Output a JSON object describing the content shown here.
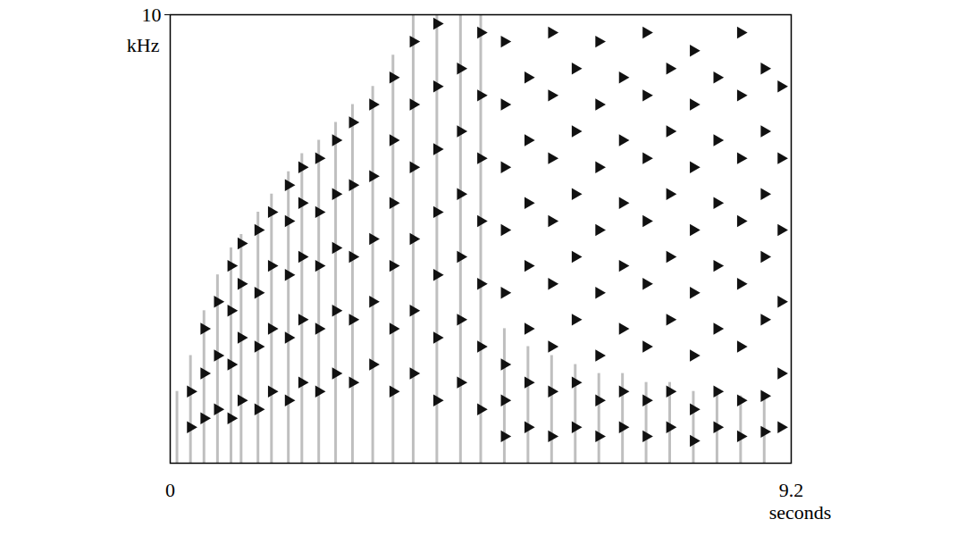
{
  "chart_data": {
    "type": "spectrogram",
    "xlabel": "seconds",
    "ylabel": "kHz",
    "xlim": [
      0,
      9.2
    ],
    "ylim": [
      0,
      10
    ],
    "xticks": [
      0,
      9.2
    ],
    "yticks": [
      10
    ],
    "color": "#111111",
    "streaks": [
      {
        "t": 0.1,
        "top": 1.6
      },
      {
        "t": 0.3,
        "top": 2.4
      },
      {
        "t": 0.5,
        "top": 3.4
      },
      {
        "t": 0.7,
        "top": 4.2
      },
      {
        "t": 0.9,
        "top": 4.8
      },
      {
        "t": 1.05,
        "top": 5.1
      },
      {
        "t": 1.3,
        "top": 5.6
      },
      {
        "t": 1.5,
        "top": 6.0
      },
      {
        "t": 1.75,
        "top": 6.5
      },
      {
        "t": 1.95,
        "top": 6.9
      },
      {
        "t": 2.2,
        "top": 7.2
      },
      {
        "t": 2.45,
        "top": 7.6
      },
      {
        "t": 2.7,
        "top": 8.0
      },
      {
        "t": 3.0,
        "top": 8.4
      },
      {
        "t": 3.3,
        "top": 9.1
      },
      {
        "t": 3.6,
        "top": 10
      },
      {
        "t": 3.95,
        "top": 10
      },
      {
        "t": 4.3,
        "top": 10
      },
      {
        "t": 4.6,
        "top": 10
      },
      {
        "t": 4.95,
        "top": 3.0
      },
      {
        "t": 5.3,
        "top": 2.6
      },
      {
        "t": 5.65,
        "top": 2.4
      },
      {
        "t": 6.0,
        "top": 2.2
      },
      {
        "t": 6.35,
        "top": 2.0
      },
      {
        "t": 6.7,
        "top": 2.0
      },
      {
        "t": 7.05,
        "top": 1.8
      },
      {
        "t": 7.4,
        "top": 1.8
      },
      {
        "t": 7.75,
        "top": 1.6
      },
      {
        "t": 8.1,
        "top": 1.6
      },
      {
        "t": 8.45,
        "top": 1.5
      },
      {
        "t": 8.8,
        "top": 1.5
      }
    ],
    "tones": [
      {
        "t": 0.3,
        "f": [
          0.8,
          1.6
        ]
      },
      {
        "t": 0.5,
        "f": [
          1.0,
          2.0,
          3.0
        ]
      },
      {
        "t": 0.7,
        "f": [
          1.2,
          2.4,
          3.6
        ]
      },
      {
        "t": 0.9,
        "f": [
          1.0,
          2.2,
          3.4,
          4.4
        ]
      },
      {
        "t": 1.05,
        "f": [
          1.4,
          2.8,
          4.0,
          4.9
        ]
      },
      {
        "t": 1.3,
        "f": [
          1.2,
          2.6,
          3.8,
          5.2
        ]
      },
      {
        "t": 1.5,
        "f": [
          1.6,
          3.0,
          4.4,
          5.6
        ]
      },
      {
        "t": 1.75,
        "f": [
          1.4,
          2.8,
          4.2,
          5.4,
          6.2
        ]
      },
      {
        "t": 1.95,
        "f": [
          1.8,
          3.2,
          4.6,
          5.8,
          6.6
        ]
      },
      {
        "t": 2.2,
        "f": [
          1.6,
          3.0,
          4.4,
          5.6,
          6.8
        ]
      },
      {
        "t": 2.45,
        "f": [
          2.0,
          3.4,
          4.8,
          6.0,
          7.2
        ]
      },
      {
        "t": 2.7,
        "f": [
          1.8,
          3.2,
          4.6,
          6.2,
          7.6
        ]
      },
      {
        "t": 3.0,
        "f": [
          2.2,
          3.6,
          5.0,
          6.4,
          8.0
        ]
      },
      {
        "t": 3.3,
        "f": [
          1.6,
          3.0,
          4.4,
          5.8,
          7.2,
          8.6
        ]
      },
      {
        "t": 3.6,
        "f": [
          2.0,
          3.4,
          5.0,
          6.6,
          8.0,
          9.4
        ]
      },
      {
        "t": 3.95,
        "f": [
          1.4,
          2.8,
          4.2,
          5.6,
          7.0,
          8.4,
          9.8
        ]
      },
      {
        "t": 4.3,
        "f": [
          1.8,
          3.2,
          4.6,
          6.0,
          7.4,
          8.8
        ]
      },
      {
        "t": 4.6,
        "f": [
          1.2,
          2.6,
          4.0,
          5.4,
          6.8,
          8.2,
          9.6
        ]
      },
      {
        "t": 4.95,
        "f": [
          0.6,
          1.4,
          2.2,
          3.8,
          5.2,
          6.6,
          8.0,
          9.4
        ]
      },
      {
        "t": 5.3,
        "f": [
          0.8,
          1.8,
          3.0,
          4.4,
          5.8,
          7.2,
          8.6
        ]
      },
      {
        "t": 5.65,
        "f": [
          0.6,
          1.6,
          2.6,
          4.0,
          5.4,
          6.8,
          8.2,
          9.6
        ]
      },
      {
        "t": 6.0,
        "f": [
          0.8,
          1.8,
          3.2,
          4.6,
          6.0,
          7.4,
          8.8
        ]
      },
      {
        "t": 6.35,
        "f": [
          0.6,
          1.4,
          2.4,
          3.8,
          5.2,
          6.6,
          8.0,
          9.4
        ]
      },
      {
        "t": 6.7,
        "f": [
          0.8,
          1.6,
          3.0,
          4.4,
          5.8,
          7.2,
          8.6
        ]
      },
      {
        "t": 7.05,
        "f": [
          0.6,
          1.4,
          2.6,
          4.0,
          5.4,
          6.8,
          8.2,
          9.6
        ]
      },
      {
        "t": 7.4,
        "f": [
          0.8,
          1.6,
          3.2,
          4.6,
          6.0,
          7.4,
          8.8
        ]
      },
      {
        "t": 7.75,
        "f": [
          0.5,
          1.2,
          2.4,
          3.8,
          5.2,
          6.6,
          8.0,
          9.2
        ]
      },
      {
        "t": 8.1,
        "f": [
          0.8,
          1.6,
          3.0,
          4.4,
          5.8,
          7.2,
          8.6
        ]
      },
      {
        "t": 8.45,
        "f": [
          0.6,
          1.4,
          2.6,
          4.0,
          5.4,
          6.8,
          8.2,
          9.6
        ]
      },
      {
        "t": 8.8,
        "f": [
          0.7,
          1.5,
          3.2,
          4.6,
          6.0,
          7.4,
          8.8
        ]
      },
      {
        "t": 9.05,
        "f": [
          0.8,
          2.0,
          3.6,
          5.2,
          6.8,
          8.4
        ]
      }
    ]
  }
}
